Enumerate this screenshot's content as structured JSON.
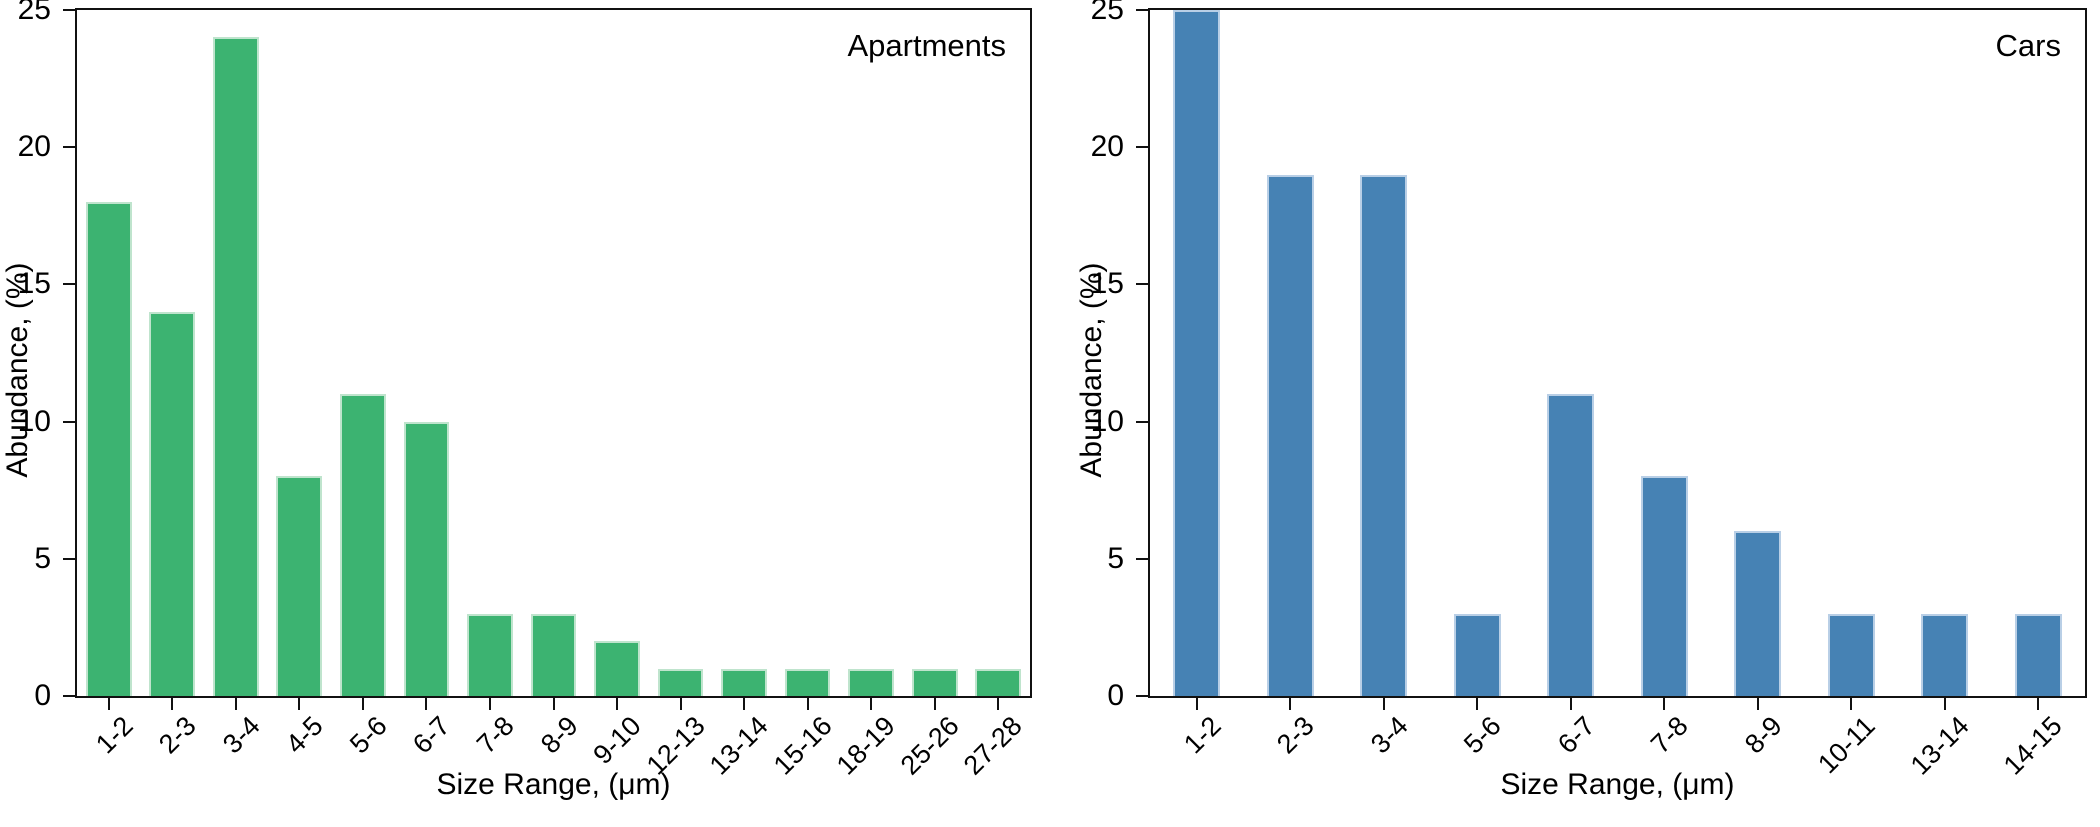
{
  "chart_data": [
    {
      "type": "bar",
      "title": "Apartments",
      "xlabel": "Size Range, (μm)",
      "ylabel": "Abundance, (%)",
      "categories": [
        "1-2",
        "2-3",
        "3-4",
        "4-5",
        "5-6",
        "6-7",
        "7-8",
        "8-9",
        "9-10",
        "12-13",
        "13-14",
        "15-16",
        "18-19",
        "25-26",
        "27-28"
      ],
      "values": [
        18,
        14,
        24,
        8,
        11,
        10,
        3,
        3,
        2,
        1,
        1,
        1,
        1,
        1,
        1
      ],
      "bar_color": "#3cb371",
      "bar_edge_color": "#bfe4cd",
      "ylim": [
        0,
        25
      ],
      "yticks": [
        0,
        5,
        10,
        15,
        20,
        25
      ],
      "bar_width_fraction": 0.72,
      "grid": false,
      "legend": "none",
      "tick_label_rotation_deg": 45
    },
    {
      "type": "bar",
      "title": "Cars",
      "xlabel": "Size Range, (μm)",
      "ylabel": "Abundance, (%)",
      "categories": [
        "1-2",
        "2-3",
        "3-4",
        "5-6",
        "6-7",
        "7-8",
        "8-9",
        "10-11",
        "13-14",
        "14-15"
      ],
      "values": [
        25,
        19,
        19,
        3,
        11,
        8,
        6,
        3,
        3,
        3
      ],
      "bar_color": "#4682b4",
      "bar_edge_color": "#b9cfe6",
      "ylim": [
        0,
        25
      ],
      "yticks": [
        0,
        5,
        10,
        15,
        20,
        25
      ],
      "bar_width_fraction": 0.5,
      "grid": false,
      "legend": "none",
      "tick_label_rotation_deg": 45
    }
  ]
}
